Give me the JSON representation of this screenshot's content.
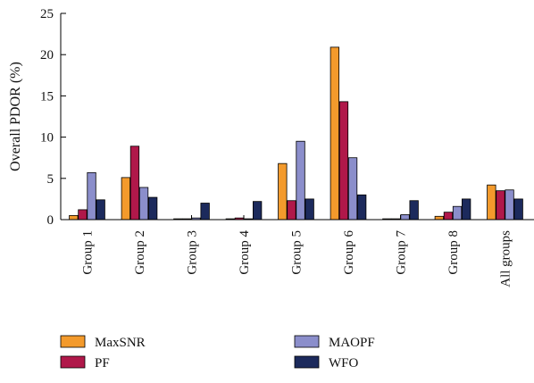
{
  "chart_data": {
    "type": "bar",
    "ylabel": "Overall PDOR (%)",
    "ylim": [
      0,
      25
    ],
    "yticks": [
      0,
      5,
      10,
      15,
      20,
      25
    ],
    "categories": [
      "Group 1",
      "Group 2",
      "Group 3",
      "Group 4",
      "Group 5",
      "Group 6",
      "Group 7",
      "Group 8",
      "All groups"
    ],
    "series": [
      {
        "name": "MaxSNR",
        "color": "#f39a2c",
        "values": [
          0.5,
          5.1,
          0.1,
          0.1,
          6.8,
          20.9,
          0.1,
          0.4,
          4.2
        ]
      },
      {
        "name": "PF",
        "color": "#b0184a",
        "values": [
          1.2,
          8.9,
          0.1,
          0.2,
          2.3,
          14.3,
          0.1,
          0.9,
          3.5
        ]
      },
      {
        "name": "MAOPF",
        "color": "#8b8ecb",
        "values": [
          5.7,
          3.9,
          0.2,
          0.1,
          9.5,
          7.5,
          0.6,
          1.6,
          3.6
        ]
      },
      {
        "name": "WFO",
        "color": "#1c2a5c",
        "values": [
          2.4,
          2.7,
          2.0,
          2.2,
          2.5,
          3.0,
          2.3,
          2.5,
          2.5
        ]
      }
    ],
    "legend_position": "bottom",
    "grid": false
  }
}
